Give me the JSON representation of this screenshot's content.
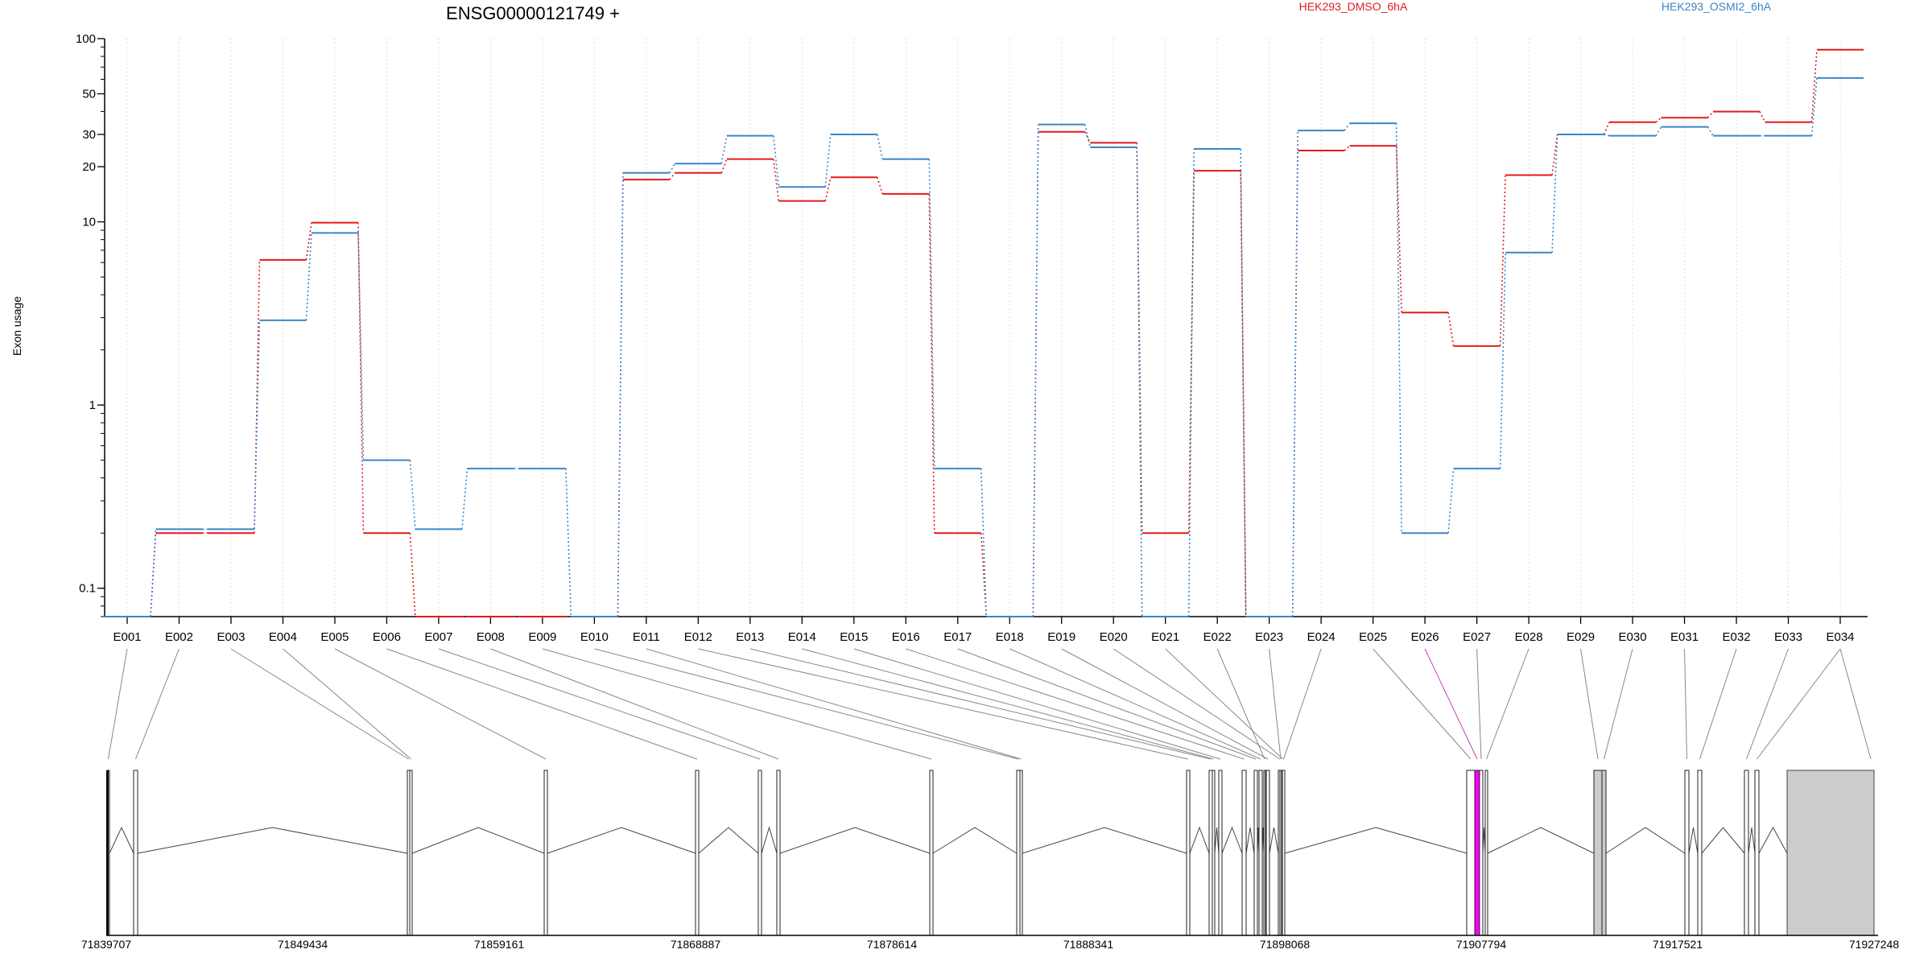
{
  "chart_data": {
    "type": "line",
    "title": "ENSG00000121749 +",
    "ylabel": "Exon usage",
    "y_scale": "log",
    "ylim": [
      0.07,
      100
    ],
    "y_ticks": [
      0.1,
      1,
      10,
      20,
      30,
      50,
      100
    ],
    "y_tick_labels": [
      "0.1",
      "1",
      "10",
      "20",
      "30",
      "50",
      "100"
    ],
    "grid": "vertical dotted",
    "legend_placement": "top-right",
    "categories": [
      "E001",
      "E002",
      "E003",
      "E004",
      "E005",
      "E006",
      "E007",
      "E008",
      "E009",
      "E010",
      "E011",
      "E012",
      "E013",
      "E014",
      "E015",
      "E016",
      "E017",
      "E018",
      "E019",
      "E020",
      "E021",
      "E022",
      "E023",
      "E024",
      "E025",
      "E026",
      "E027",
      "E028",
      "E029",
      "E030",
      "E031",
      "E032",
      "E033",
      "E034"
    ],
    "series": [
      {
        "name": "HEK293_DMSO_6hA",
        "color": "#e31a1c",
        "values": [
          0.07,
          0.2,
          0.2,
          6.2,
          9.9,
          0.2,
          0.07,
          0.07,
          0.07,
          0.07,
          17,
          18.5,
          22,
          13,
          17.5,
          14.2,
          0.2,
          0.07,
          31,
          27,
          0.2,
          19,
          0.07,
          24.5,
          26,
          3.2,
          2.1,
          18,
          30,
          35,
          37,
          40,
          35,
          87
        ]
      },
      {
        "name": "HEK293_OSMI2_6hA",
        "color": "#3a86c8",
        "values": [
          0.07,
          0.21,
          0.21,
          2.9,
          8.7,
          0.5,
          0.21,
          0.45,
          0.45,
          0.07,
          18.5,
          20.8,
          29.5,
          15.5,
          30,
          22,
          0.45,
          0.07,
          34,
          25.5,
          0.07,
          25,
          0.07,
          31.5,
          34.5,
          0.2,
          0.45,
          6.8,
          30,
          29.5,
          33,
          29.5,
          29.5,
          61
        ]
      }
    ],
    "gene_model": {
      "coordinate_ticks": [
        "71839707",
        "71849434",
        "71859161",
        "71868887",
        "71878614",
        "71888341",
        "71898068",
        "71907794",
        "71917521",
        "71927248"
      ],
      "highlight_exon": "E026",
      "highlight_color": "#ff00ff",
      "exon_fill": "#ffffff",
      "utr_fill": "#cccccc"
    }
  }
}
